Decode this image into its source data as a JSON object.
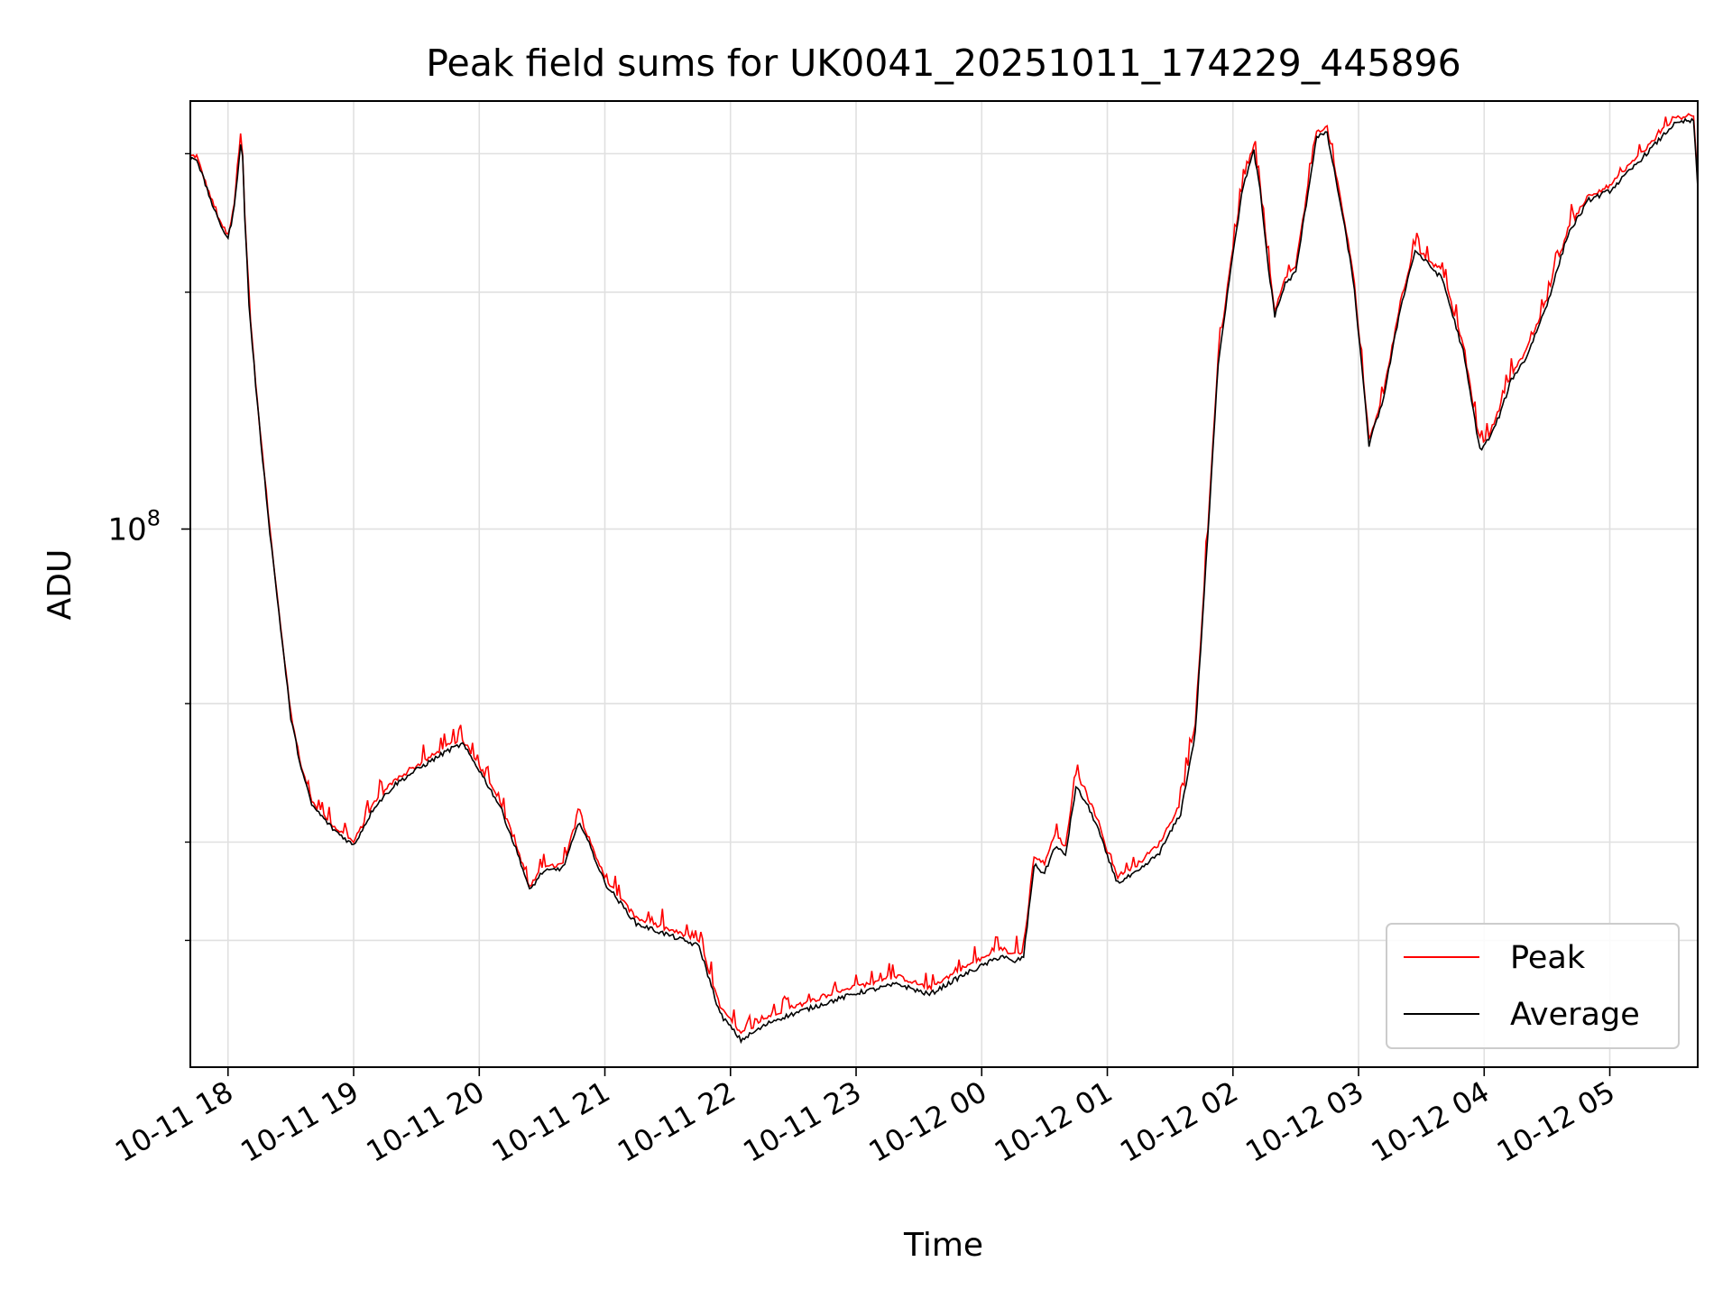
{
  "chart_data": {
    "type": "line",
    "title": "Peak field sums for UK0041_20251011_174229_445896",
    "xlabel": "Time",
    "ylabel": "ADU",
    "yscale": "log",
    "grid": true,
    "legend_placement": "lower-right",
    "x_ticks": [
      "10-11 18",
      "10-11 19",
      "10-11 20",
      "10-11 21",
      "10-11 22",
      "10-11 23",
      "10-12 00",
      "10-12 01",
      "10-12 02",
      "10-12 03",
      "10-12 04",
      "10-12 05"
    ],
    "y_major_tick": {
      "value": 100000000,
      "base": "10",
      "exponent": "8"
    },
    "xlim": [
      "2025-10-11 17:42",
      "2025-10-12 05:42"
    ],
    "ylim": [
      20700000,
      350000000
    ],
    "series": [
      {
        "name": "Peak",
        "color": "#ff0000",
        "x": [
          "2025-10-11 17:42",
          "2025-10-11 17:45",
          "2025-10-11 17:50",
          "2025-10-11 17:55",
          "2025-10-11 18:00",
          "2025-10-11 18:03",
          "2025-10-11 18:06",
          "2025-10-11 18:07",
          "2025-10-11 18:08",
          "2025-10-11 18:10",
          "2025-10-11 18:14",
          "2025-10-11 18:20",
          "2025-10-11 18:26",
          "2025-10-11 18:30",
          "2025-10-11 18:35",
          "2025-10-11 18:40",
          "2025-10-11 18:50",
          "2025-10-11 19:00",
          "2025-10-11 19:10",
          "2025-10-11 19:20",
          "2025-10-11 19:30",
          "2025-10-11 19:45",
          "2025-10-11 19:52",
          "2025-10-11 20:00",
          "2025-10-11 20:10",
          "2025-10-11 20:20",
          "2025-10-11 20:24",
          "2025-10-11 20:30",
          "2025-10-11 20:40",
          "2025-10-11 20:48",
          "2025-10-11 20:50",
          "2025-10-11 21:00",
          "2025-10-11 21:15",
          "2025-10-11 21:30",
          "2025-10-11 21:45",
          "2025-10-11 21:55",
          "2025-10-11 22:05",
          "2025-10-11 22:20",
          "2025-10-11 22:40",
          "2025-10-11 23:00",
          "2025-10-11 23:20",
          "2025-10-11 23:35",
          "2025-10-11 23:50",
          "2025-10-12 00:10",
          "2025-10-12 00:15",
          "2025-10-12 00:20",
          "2025-10-12 00:25",
          "2025-10-12 00:30",
          "2025-10-12 00:35",
          "2025-10-12 00:40",
          "2025-10-12 00:45",
          "2025-10-12 00:50",
          "2025-10-12 00:55",
          "2025-10-12 01:00",
          "2025-10-12 01:05",
          "2025-10-12 01:15",
          "2025-10-12 01:25",
          "2025-10-12 01:35",
          "2025-10-12 01:42",
          "2025-10-12 01:48",
          "2025-10-12 01:53",
          "2025-10-12 02:00",
          "2025-10-12 02:05",
          "2025-10-12 02:10",
          "2025-10-12 02:13",
          "2025-10-12 02:17",
          "2025-10-12 02:20",
          "2025-10-12 02:25",
          "2025-10-12 02:30",
          "2025-10-12 02:35",
          "2025-10-12 02:40",
          "2025-10-12 02:45",
          "2025-10-12 02:50",
          "2025-10-12 02:55",
          "2025-10-12 02:58",
          "2025-10-12 03:05",
          "2025-10-12 03:12",
          "2025-10-12 03:20",
          "2025-10-12 03:27",
          "2025-10-12 03:32",
          "2025-10-12 03:40",
          "2025-10-12 03:50",
          "2025-10-12 03:58",
          "2025-10-12 04:03",
          "2025-10-12 04:08",
          "2025-10-12 04:13",
          "2025-10-12 04:20",
          "2025-10-12 04:30",
          "2025-10-12 04:40",
          "2025-10-12 04:50",
          "2025-10-12 05:00",
          "2025-10-12 05:10",
          "2025-10-12 05:20",
          "2025-10-12 05:30",
          "2025-10-12 05:36",
          "2025-10-12 05:40",
          "2025-10-12 05:42"
        ],
        "values": [
          298000000,
          298000000,
          272000000,
          250000000,
          236000000,
          260000000,
          320000000,
          300000000,
          252000000,
          195000000,
          145000000,
          100000000,
          72000000,
          58000000,
          50000000,
          45000000,
          42000000,
          40000000,
          45000000,
          48000000,
          50000000,
          53000000,
          54000000,
          50000000,
          45000000,
          38000000,
          35000000,
          37000000,
          37500000,
          44000000,
          42000000,
          36000000,
          32000000,
          31000000,
          30000000,
          24700000,
          22800000,
          24200000,
          25200000,
          26200000,
          27000000,
          26100000,
          27600000,
          29300000,
          28700000,
          29200000,
          38500000,
          37500000,
          41000000,
          39500000,
          49000000,
          46000000,
          43000000,
          39000000,
          36200000,
          37600000,
          39900000,
          44900000,
          56500000,
          100000000,
          166000000,
          228000000,
          278000000,
          308000000,
          273000000,
          218000000,
          190000000,
          208000000,
          216000000,
          263000000,
          321000000,
          324000000,
          275000000,
          232000000,
          205000000,
          130000000,
          149000000,
          194000000,
          229000000,
          222000000,
          212000000,
          171000000,
          128000000,
          133000000,
          144000000,
          158000000,
          168000000,
          196000000,
          241000000,
          266000000,
          273000000,
          291000000,
          310000000,
          332000000,
          335000000,
          335000000,
          275000000
        ]
      },
      {
        "name": "Average",
        "color": "#000000",
        "x": [
          "2025-10-11 17:42",
          "2025-10-11 17:45",
          "2025-10-11 17:50",
          "2025-10-11 17:55",
          "2025-10-11 18:00",
          "2025-10-11 18:03",
          "2025-10-11 18:06",
          "2025-10-11 18:07",
          "2025-10-11 18:08",
          "2025-10-11 18:10",
          "2025-10-11 18:14",
          "2025-10-11 18:20",
          "2025-10-11 18:26",
          "2025-10-11 18:30",
          "2025-10-11 18:35",
          "2025-10-11 18:40",
          "2025-10-11 18:50",
          "2025-10-11 19:00",
          "2025-10-11 19:10",
          "2025-10-11 19:20",
          "2025-10-11 19:30",
          "2025-10-11 19:45",
          "2025-10-11 19:52",
          "2025-10-11 20:00",
          "2025-10-11 20:10",
          "2025-10-11 20:20",
          "2025-10-11 20:24",
          "2025-10-11 20:30",
          "2025-10-11 20:40",
          "2025-10-11 20:48",
          "2025-10-11 20:50",
          "2025-10-11 21:00",
          "2025-10-11 21:15",
          "2025-10-11 21:30",
          "2025-10-11 21:45",
          "2025-10-11 21:55",
          "2025-10-11 22:05",
          "2025-10-11 22:20",
          "2025-10-11 22:40",
          "2025-10-11 23:00",
          "2025-10-11 23:20",
          "2025-10-11 23:35",
          "2025-10-11 23:50",
          "2025-10-12 00:10",
          "2025-10-12 00:15",
          "2025-10-12 00:20",
          "2025-10-12 00:25",
          "2025-10-12 00:30",
          "2025-10-12 00:35",
          "2025-10-12 00:40",
          "2025-10-12 00:45",
          "2025-10-12 00:50",
          "2025-10-12 00:55",
          "2025-10-12 01:00",
          "2025-10-12 01:05",
          "2025-10-12 01:15",
          "2025-10-12 01:25",
          "2025-10-12 01:35",
          "2025-10-12 01:42",
          "2025-10-12 01:48",
          "2025-10-12 01:53",
          "2025-10-12 02:00",
          "2025-10-12 02:05",
          "2025-10-12 02:10",
          "2025-10-12 02:13",
          "2025-10-12 02:17",
          "2025-10-12 02:20",
          "2025-10-12 02:25",
          "2025-10-12 02:30",
          "2025-10-12 02:35",
          "2025-10-12 02:40",
          "2025-10-12 02:45",
          "2025-10-12 02:50",
          "2025-10-12 02:55",
          "2025-10-12 02:58",
          "2025-10-12 03:05",
          "2025-10-12 03:12",
          "2025-10-12 03:20",
          "2025-10-12 03:27",
          "2025-10-12 03:32",
          "2025-10-12 03:40",
          "2025-10-12 03:50",
          "2025-10-12 03:58",
          "2025-10-12 04:03",
          "2025-10-12 04:08",
          "2025-10-12 04:13",
          "2025-10-12 04:20",
          "2025-10-12 04:30",
          "2025-10-12 04:40",
          "2025-10-12 04:50",
          "2025-10-12 05:00",
          "2025-10-12 05:10",
          "2025-10-12 05:20",
          "2025-10-12 05:30",
          "2025-10-12 05:36",
          "2025-10-12 05:40",
          "2025-10-12 05:42"
        ],
        "values": [
          296000000,
          296000000,
          270000000,
          248000000,
          234000000,
          256000000,
          310000000,
          296000000,
          250000000,
          193000000,
          144000000,
          99000000,
          71500000,
          57500000,
          49600000,
          44600000,
          41600000,
          39600000,
          44400000,
          47400000,
          49400000,
          52300000,
          53300000,
          49400000,
          44400000,
          37600000,
          34700000,
          36600000,
          37100000,
          42500000,
          41300000,
          35500000,
          31500000,
          30500000,
          29500000,
          24200000,
          22400000,
          23700000,
          24700000,
          25700000,
          26400000,
          25600000,
          27000000,
          28700000,
          28100000,
          28600000,
          37400000,
          36500000,
          39500000,
          38500000,
          47000000,
          44800000,
          42000000,
          38300000,
          35500000,
          36700000,
          38800000,
          43500000,
          55000000,
          98000000,
          163000000,
          225000000,
          274000000,
          302000000,
          269000000,
          214000000,
          187000000,
          205000000,
          212000000,
          259000000,
          316000000,
          318000000,
          271000000,
          228000000,
          202000000,
          128000000,
          147000000,
          191000000,
          226000000,
          219000000,
          208000000,
          168000000,
          126000000,
          131000000,
          141000000,
          155000000,
          165000000,
          193000000,
          237000000,
          262000000,
          269000000,
          286000000,
          305000000,
          326000000,
          330000000,
          330000000,
          272000000
        ]
      }
    ]
  }
}
